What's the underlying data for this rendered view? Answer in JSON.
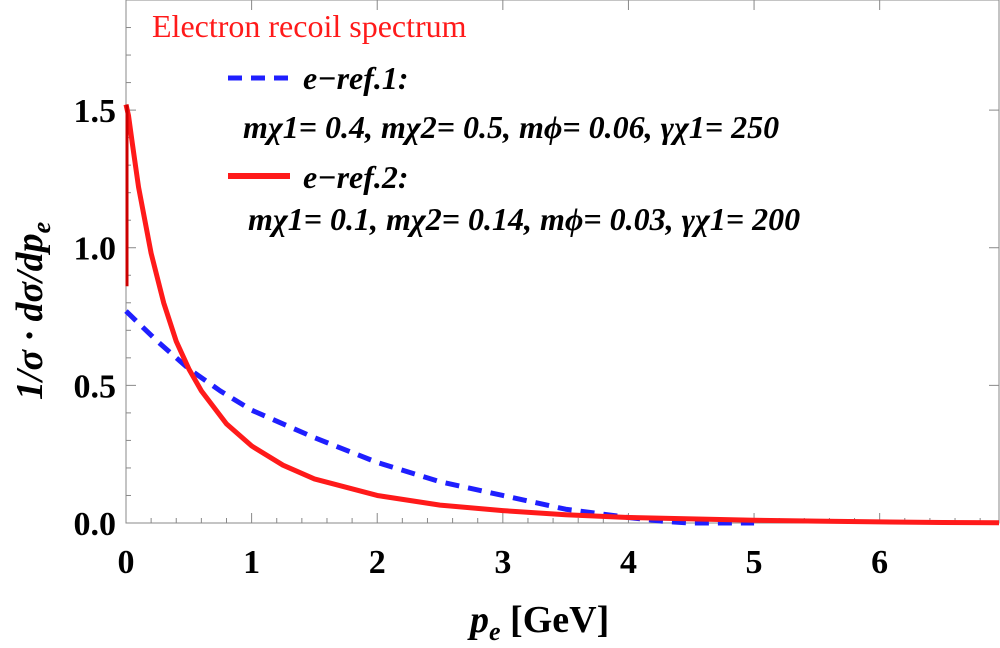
{
  "chart_data": {
    "type": "line",
    "title": "Electron recoil spectrum",
    "xlabel": "p_e [GeV]",
    "xlabel_main": "p",
    "xlabel_sub": "e",
    "xlabel_unit": " [GeV]",
    "ylabel": "1/σ · dσ/dp_e",
    "ylabel_main": "1/σ · dσ/dp",
    "ylabel_sub": "e",
    "xlim": [
      0,
      6.95
    ],
    "ylim": [
      0,
      1.9
    ],
    "xticks": [
      0,
      1,
      2,
      3,
      4,
      5,
      6
    ],
    "yticks": [
      0.0,
      0.5,
      1.0,
      1.5
    ],
    "xtick_labels": [
      "0",
      "1",
      "2",
      "3",
      "4",
      "5",
      "6"
    ],
    "ytick_labels": [
      "0.0",
      "0.5",
      "1.0",
      "1.5"
    ],
    "series": [
      {
        "name": "e−ref.1:",
        "params": "mχ1= 0.4, mχ2= 0.5, mϕ= 0.06, γχ1= 250",
        "color": "#1f1fff",
        "style": "dashed",
        "x": [
          0.0,
          0.25,
          0.5,
          0.75,
          1.0,
          1.5,
          2.0,
          2.5,
          3.0,
          3.5,
          4.0,
          4.3,
          4.5,
          5.0
        ],
        "y": [
          0.77,
          0.66,
          0.56,
          0.48,
          0.41,
          0.31,
          0.22,
          0.15,
          0.1,
          0.05,
          0.02,
          0.005,
          0.0,
          0.0
        ]
      },
      {
        "name": "e−ref.2:",
        "params": "mχ1= 0.1, mχ2= 0.14, mϕ= 0.03, γχ1= 200",
        "color": "#ff1a1a",
        "style": "solid",
        "x": [
          0.0,
          0.02,
          0.05,
          0.1,
          0.2,
          0.3,
          0.4,
          0.5,
          0.6,
          0.8,
          1.0,
          1.25,
          1.5,
          2.0,
          2.5,
          3.0,
          3.5,
          4.0,
          4.5,
          5.0,
          5.5,
          6.0,
          6.5,
          6.95
        ],
        "y": [
          1.52,
          1.48,
          1.38,
          1.22,
          0.98,
          0.8,
          0.66,
          0.56,
          0.48,
          0.36,
          0.28,
          0.21,
          0.16,
          0.1,
          0.065,
          0.045,
          0.03,
          0.02,
          0.015,
          0.01,
          0.007,
          0.004,
          0.002,
          0.001
        ]
      }
    ],
    "spike": {
      "x": 0.0,
      "y_bottom": 0.86,
      "y_top": 1.52,
      "color": "#cc0000"
    }
  }
}
